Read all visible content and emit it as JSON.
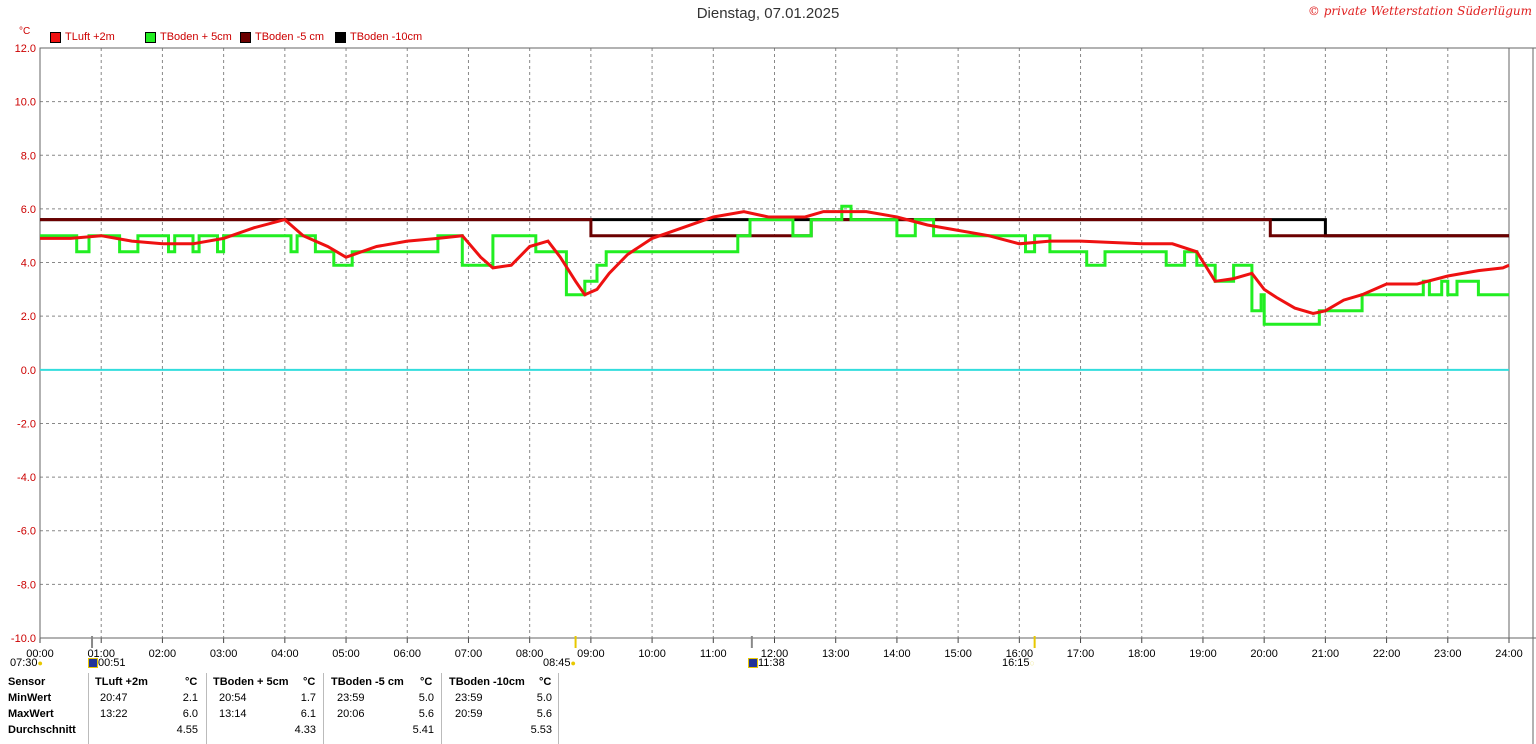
{
  "header": {
    "title": "Dienstag, 07.01.2025",
    "copyright": "© private Wetterstation Süderlügum",
    "unit": "°C"
  },
  "legend": [
    {
      "label": "TLuft +2m",
      "color": "#ee1111"
    },
    {
      "label": "TBoden + 5cm",
      "color": "#22ee22"
    },
    {
      "label": "TBoden -5 cm",
      "color": "#6b0000"
    },
    {
      "label": "TBoden -10cm",
      "color": "#000000"
    }
  ],
  "events": {
    "sunrise_label": "07:30",
    "moonset_label": "00:51",
    "noon_label": "08:45",
    "moonrise_label": "11:38",
    "sunset_label": "16:15"
  },
  "chart_data": {
    "type": "line",
    "xlim": [
      0,
      24
    ],
    "ylim": [
      -10,
      12
    ],
    "grid": true,
    "legend_position": "top-left",
    "x_ticks": [
      "00:00",
      "01:00",
      "02:00",
      "03:00",
      "04:00",
      "05:00",
      "06:00",
      "07:00",
      "08:00",
      "09:00",
      "10:00",
      "11:00",
      "12:00",
      "13:00",
      "14:00",
      "15:00",
      "16:00",
      "17:00",
      "18:00",
      "19:00",
      "20:00",
      "21:00",
      "22:00",
      "23:00",
      "24:00"
    ],
    "y_ticks": [
      "12.0",
      "10.0",
      "8.0",
      "6.0",
      "4.0",
      "2.0",
      "0.0",
      "-2.0",
      "-4.0",
      "-6.0",
      "-8.0",
      "-10.0"
    ],
    "reference_line": {
      "y": 0.0,
      "color": "#33dddd"
    },
    "series": [
      {
        "name": "TLuft +2m",
        "color": "#ee1111",
        "step": false,
        "points": [
          [
            0,
            4.9
          ],
          [
            0.5,
            4.9
          ],
          [
            1,
            5.0
          ],
          [
            1.5,
            4.8
          ],
          [
            2,
            4.7
          ],
          [
            2.5,
            4.7
          ],
          [
            3,
            4.9
          ],
          [
            3.5,
            5.3
          ],
          [
            4,
            5.6
          ],
          [
            4.3,
            5.0
          ],
          [
            4.7,
            4.6
          ],
          [
            5,
            4.2
          ],
          [
            5.5,
            4.6
          ],
          [
            6,
            4.8
          ],
          [
            6.5,
            4.9
          ],
          [
            6.9,
            5.0
          ],
          [
            7.2,
            4.2
          ],
          [
            7.4,
            3.8
          ],
          [
            7.7,
            3.9
          ],
          [
            8,
            4.6
          ],
          [
            8.3,
            4.8
          ],
          [
            8.5,
            4.2
          ],
          [
            8.75,
            3.3
          ],
          [
            8.9,
            2.8
          ],
          [
            9.1,
            3.0
          ],
          [
            9.3,
            3.6
          ],
          [
            9.6,
            4.3
          ],
          [
            10,
            4.9
          ],
          [
            10.5,
            5.3
          ],
          [
            11,
            5.7
          ],
          [
            11.5,
            5.9
          ],
          [
            11.9,
            5.7
          ],
          [
            12.5,
            5.7
          ],
          [
            12.8,
            5.9
          ],
          [
            13.2,
            5.9
          ],
          [
            13.5,
            5.9
          ],
          [
            14,
            5.7
          ],
          [
            14.5,
            5.4
          ],
          [
            15,
            5.2
          ],
          [
            15.5,
            5.0
          ],
          [
            16,
            4.7
          ],
          [
            16.5,
            4.8
          ],
          [
            17,
            4.8
          ],
          [
            18,
            4.7
          ],
          [
            18.5,
            4.7
          ],
          [
            18.9,
            4.4
          ],
          [
            19.2,
            3.3
          ],
          [
            19.5,
            3.4
          ],
          [
            19.8,
            3.6
          ],
          [
            20,
            3.0
          ],
          [
            20.2,
            2.7
          ],
          [
            20.5,
            2.3
          ],
          [
            20.8,
            2.1
          ],
          [
            21,
            2.2
          ],
          [
            21.3,
            2.6
          ],
          [
            21.6,
            2.8
          ],
          [
            22,
            3.2
          ],
          [
            22.5,
            3.2
          ],
          [
            23,
            3.5
          ],
          [
            23.5,
            3.7
          ],
          [
            23.9,
            3.8
          ],
          [
            24,
            3.9
          ]
        ]
      },
      {
        "name": "TBoden + 5cm",
        "color": "#22ee22",
        "step": true,
        "points": [
          [
            0,
            5.0
          ],
          [
            0.6,
            4.4
          ],
          [
            0.8,
            5.0
          ],
          [
            1.3,
            4.4
          ],
          [
            1.6,
            5.0
          ],
          [
            2.1,
            4.4
          ],
          [
            2.2,
            5.0
          ],
          [
            2.5,
            4.4
          ],
          [
            2.6,
            5.0
          ],
          [
            2.9,
            4.4
          ],
          [
            3.0,
            5.0
          ],
          [
            4.1,
            4.4
          ],
          [
            4.2,
            5.0
          ],
          [
            4.5,
            4.4
          ],
          [
            4.8,
            3.9
          ],
          [
            5.1,
            4.4
          ],
          [
            6.5,
            5.0
          ],
          [
            6.9,
            3.9
          ],
          [
            7.4,
            5.0
          ],
          [
            8.1,
            4.4
          ],
          [
            8.6,
            2.8
          ],
          [
            8.9,
            3.3
          ],
          [
            9.1,
            3.9
          ],
          [
            9.25,
            4.4
          ],
          [
            11.4,
            5.0
          ],
          [
            11.6,
            5.6
          ],
          [
            12.3,
            5.0
          ],
          [
            12.6,
            5.6
          ],
          [
            13.1,
            6.1
          ],
          [
            13.25,
            5.6
          ],
          [
            14.0,
            5.0
          ],
          [
            14.3,
            5.6
          ],
          [
            14.6,
            5.0
          ],
          [
            16.1,
            4.4
          ],
          [
            16.25,
            5.0
          ],
          [
            16.5,
            4.4
          ],
          [
            17.1,
            3.9
          ],
          [
            17.4,
            4.4
          ],
          [
            18.4,
            3.9
          ],
          [
            18.7,
            4.4
          ],
          [
            18.9,
            3.9
          ],
          [
            19.2,
            3.3
          ],
          [
            19.5,
            3.9
          ],
          [
            19.8,
            2.2
          ],
          [
            19.95,
            2.8
          ],
          [
            20.0,
            1.7
          ],
          [
            20.9,
            2.2
          ],
          [
            21.6,
            2.8
          ],
          [
            22.6,
            3.3
          ],
          [
            22.7,
            2.8
          ],
          [
            22.9,
            3.3
          ],
          [
            23.0,
            2.8
          ],
          [
            23.15,
            3.3
          ],
          [
            23.5,
            2.8
          ],
          [
            24,
            2.8
          ]
        ]
      },
      {
        "name": "TBoden -5 cm",
        "color": "#6b0000",
        "step": true,
        "points": [
          [
            0,
            5.6
          ],
          [
            9.0,
            5.0
          ],
          [
            12.6,
            5.6
          ],
          [
            20.1,
            5.0
          ],
          [
            24,
            5.0
          ]
        ]
      },
      {
        "name": "TBoden -10cm",
        "color": "#000000",
        "step": true,
        "points": [
          [
            0,
            5.6
          ],
          [
            21.0,
            5.0
          ],
          [
            24,
            5.0
          ]
        ]
      }
    ]
  },
  "stats": {
    "header": [
      "Sensor",
      "TLuft +2m",
      "°C",
      "TBoden + 5cm",
      "°C",
      "TBoden -5 cm",
      "°C",
      "TBoden -10cm",
      "°C"
    ],
    "rows": [
      {
        "label": "MinWert",
        "cells": [
          "20:47",
          "2.1",
          "20:54",
          "1.7",
          "23:59",
          "5.0",
          "23:59",
          "5.0"
        ]
      },
      {
        "label": "MaxWert",
        "cells": [
          "13:22",
          "6.0",
          "13:14",
          "6.1",
          "20:06",
          "5.6",
          "20:59",
          "5.6"
        ]
      },
      {
        "label": "Durchschnitt",
        "cells": [
          "",
          "4.55",
          "",
          "4.33",
          "",
          "5.41",
          "",
          "5.53"
        ]
      }
    ]
  }
}
